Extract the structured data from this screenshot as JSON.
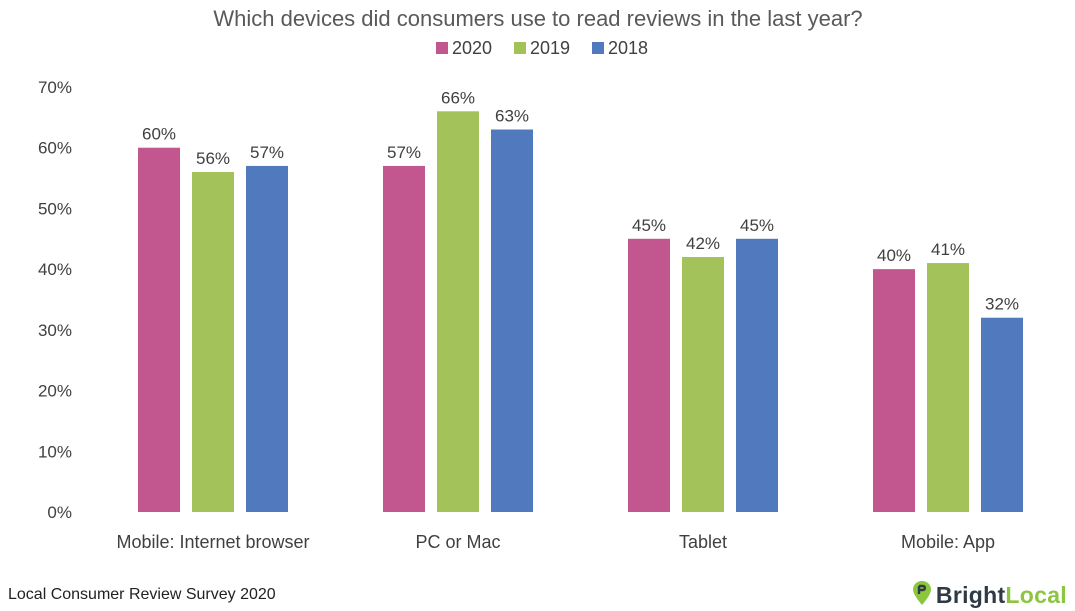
{
  "chart_data": {
    "type": "bar",
    "title": "Which devices did consumers use to read reviews in the last year?",
    "categories": [
      "Mobile: Internet browser",
      "PC or Mac",
      "Tablet",
      "Mobile: App"
    ],
    "series": [
      {
        "name": "2020",
        "color": "#c2568f",
        "values": [
          60,
          57,
          45,
          40
        ]
      },
      {
        "name": "2019",
        "color": "#a3c35a",
        "values": [
          56,
          66,
          42,
          41
        ]
      },
      {
        "name": "2018",
        "color": "#5179bd",
        "values": [
          57,
          63,
          45,
          32
        ]
      }
    ],
    "ylim": [
      0,
      70
    ],
    "yticks": [
      "0%",
      "10%",
      "20%",
      "30%",
      "40%",
      "50%",
      "60%",
      "70%"
    ],
    "value_suffix": "%",
    "legend": "top-center",
    "grid": false
  },
  "footer": {
    "source": "Local Consumer Review Survey 2020"
  },
  "brand": {
    "bright": "Bright",
    "local": "Local",
    "logo": "location-pin-icon"
  }
}
